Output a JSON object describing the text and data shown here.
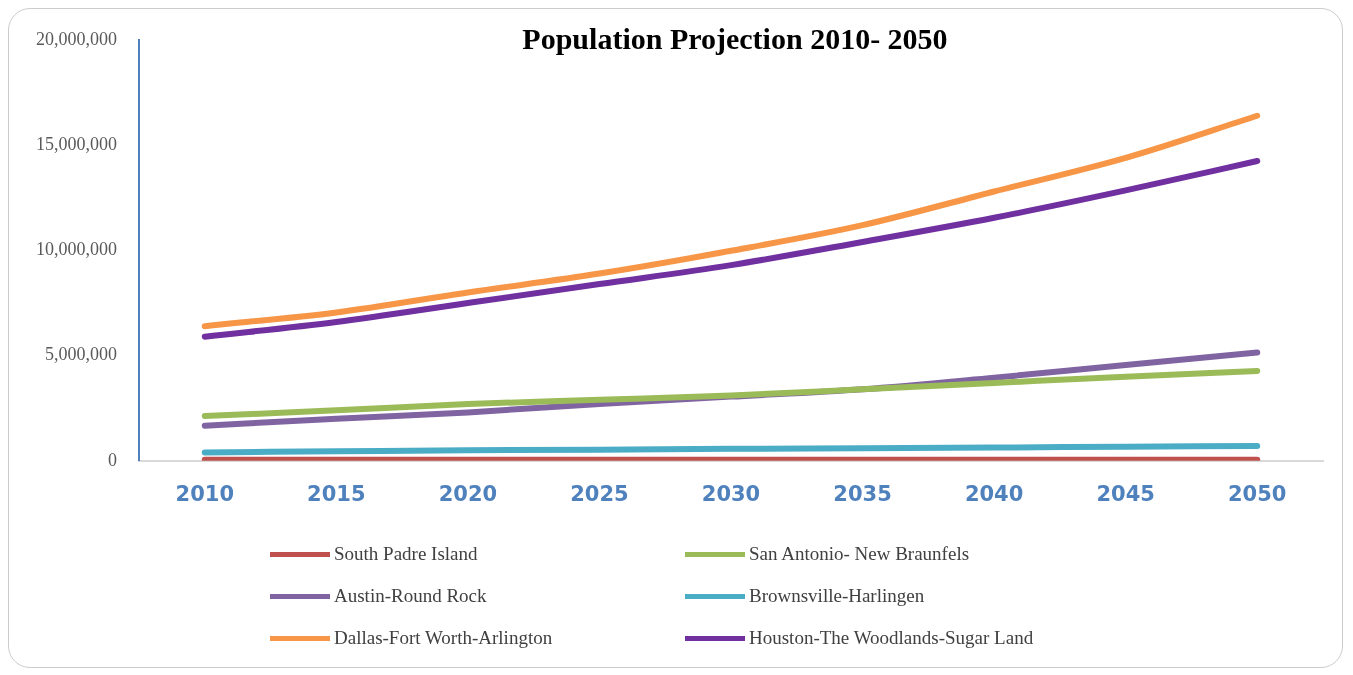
{
  "chart_data": {
    "type": "line",
    "title": "Population Projection 2010- 2050",
    "categories": [
      "2010",
      "2015",
      "2020",
      "2025",
      "2030",
      "2035",
      "2040",
      "2045",
      "2050"
    ],
    "series": [
      {
        "name": "South Padre Island",
        "color": "#c0504d",
        "values": [
          50000,
          50000,
          50000,
          50000,
          50000,
          50000,
          50000,
          50000,
          50000
        ]
      },
      {
        "name": "San Antonio- New Braunfels",
        "color": "#9bbb59",
        "values": [
          2130000,
          2400000,
          2700000,
          2900000,
          3100000,
          3400000,
          3700000,
          4000000,
          4270000
        ]
      },
      {
        "name": "Austin-Round Rock",
        "color": "#8064a2",
        "values": [
          1670000,
          2000000,
          2300000,
          2700000,
          3050000,
          3400000,
          3950000,
          4550000,
          5150000
        ]
      },
      {
        "name": "Brownsville-Harlingen",
        "color": "#4bacc6",
        "values": [
          400000,
          450000,
          500000,
          530000,
          570000,
          600000,
          630000,
          670000,
          700000
        ]
      },
      {
        "name": "Dallas-Fort Worth-Arlington",
        "color": "#f79646",
        "values": [
          6400000,
          7050000,
          8000000,
          8900000,
          9980000,
          11200000,
          12800000,
          14400000,
          16400000
        ]
      },
      {
        "name": "Houston-The Woodlands-Sugar Land",
        "color": "#7030a0",
        "values": [
          5900000,
          6600000,
          7500000,
          8400000,
          9300000,
          10400000,
          11550000,
          12850000,
          14250000
        ]
      }
    ],
    "ylim": [
      0,
      20000000
    ],
    "yticks": [
      {
        "value": 0,
        "label": "0"
      },
      {
        "value": 5000000,
        "label": "5,000,000"
      },
      {
        "value": 10000000,
        "label": "10,000,000"
      },
      {
        "value": 15000000,
        "label": "15,000,000"
      },
      {
        "value": 20000000,
        "label": "20,000,000"
      }
    ],
    "grid": false,
    "legend": "bottom",
    "marker": "none",
    "line_style": "solid"
  }
}
